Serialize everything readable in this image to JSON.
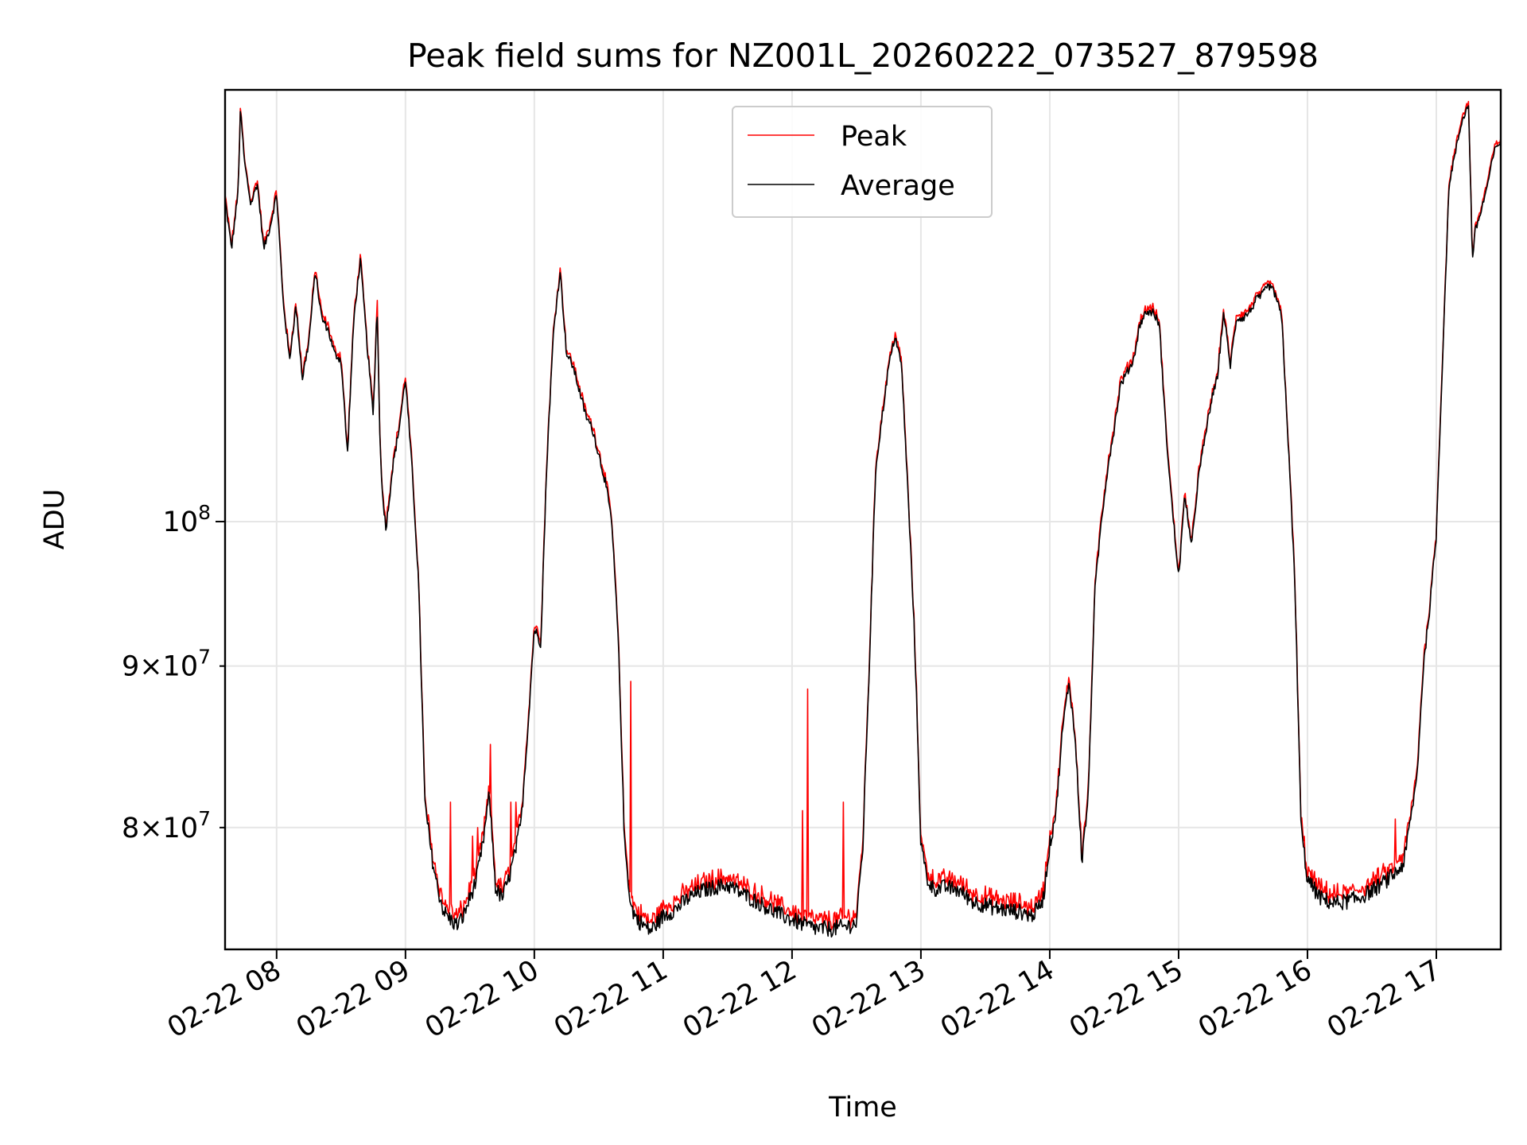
{
  "chart_data": {
    "type": "line",
    "title": "Peak field sums for NZ001L_20260222_073527_879598",
    "xlabel": "Time",
    "ylabel": "ADU",
    "yscale": "log",
    "grid": true,
    "legend_position": "upper-center",
    "xlim_hours": [
      7.6,
      17.5
    ],
    "ylim": [
      73200000,
      137000000
    ],
    "x_ticks": [
      {
        "value": 8,
        "label": "02-22 08"
      },
      {
        "value": 9,
        "label": "02-22 09"
      },
      {
        "value": 10,
        "label": "02-22 10"
      },
      {
        "value": 11,
        "label": "02-22 11"
      },
      {
        "value": 12,
        "label": "02-22 12"
      },
      {
        "value": 13,
        "label": "02-22 13"
      },
      {
        "value": 14,
        "label": "02-22 14"
      },
      {
        "value": 15,
        "label": "02-22 15"
      },
      {
        "value": 16,
        "label": "02-22 16"
      },
      {
        "value": 17,
        "label": "02-22 17"
      }
    ],
    "y_ticks": [
      {
        "value": 80000000,
        "mantissa": "8",
        "base": "10",
        "exp": "7",
        "major": false
      },
      {
        "value": 90000000,
        "mantissa": "9",
        "base": "10",
        "exp": "7",
        "major": false
      },
      {
        "value": 100000000,
        "mantissa": "",
        "base": "10",
        "exp": "8",
        "major": true
      }
    ],
    "series_names": [
      "Peak",
      "Average"
    ],
    "series_colors": [
      "#ff0000",
      "#000000"
    ],
    "average_knots": [
      [
        7.6,
        126.5
      ],
      [
        7.65,
        122.0
      ],
      [
        7.7,
        127.0
      ],
      [
        7.72,
        135.0
      ],
      [
        7.75,
        130.0
      ],
      [
        7.8,
        126.0
      ],
      [
        7.85,
        128.0
      ],
      [
        7.9,
        122.0
      ],
      [
        7.95,
        124.0
      ],
      [
        8.0,
        127.0
      ],
      [
        8.05,
        117.5
      ],
      [
        8.1,
        112.5
      ],
      [
        8.15,
        117.0
      ],
      [
        8.2,
        111.0
      ],
      [
        8.25,
        114.0
      ],
      [
        8.3,
        120.0
      ],
      [
        8.35,
        116.0
      ],
      [
        8.4,
        115.0
      ],
      [
        8.45,
        113.0
      ],
      [
        8.5,
        112.5
      ],
      [
        8.55,
        105.0
      ],
      [
        8.6,
        116.0
      ],
      [
        8.65,
        121.0
      ],
      [
        8.7,
        114.0
      ],
      [
        8.75,
        108.0
      ],
      [
        8.78,
        117.0
      ],
      [
        8.8,
        107.0
      ],
      [
        8.82,
        102.0
      ],
      [
        8.85,
        99.5
      ],
      [
        8.9,
        104.0
      ],
      [
        8.95,
        107.0
      ],
      [
        9.0,
        111.0
      ],
      [
        9.05,
        104.0
      ],
      [
        9.1,
        96.0
      ],
      [
        9.15,
        81.5
      ],
      [
        9.2,
        78.5
      ],
      [
        9.25,
        76.5
      ],
      [
        9.3,
        75.2
      ],
      [
        9.35,
        74.8
      ],
      [
        9.4,
        74.5
      ],
      [
        9.45,
        75.0
      ],
      [
        9.5,
        76.0
      ],
      [
        9.55,
        77.0
      ],
      [
        9.6,
        79.0
      ],
      [
        9.65,
        82.0
      ],
      [
        9.7,
        76.5
      ],
      [
        9.75,
        76.0
      ],
      [
        9.8,
        77.0
      ],
      [
        9.85,
        78.5
      ],
      [
        9.9,
        80.5
      ],
      [
        9.95,
        86.0
      ],
      [
        10.0,
        92.5
      ],
      [
        10.05,
        91.5
      ],
      [
        10.1,
        105.0
      ],
      [
        10.15,
        115.0
      ],
      [
        10.2,
        120.0
      ],
      [
        10.25,
        113.0
      ],
      [
        10.3,
        112.0
      ],
      [
        10.35,
        110.0
      ],
      [
        10.4,
        108.0
      ],
      [
        10.45,
        107.0
      ],
      [
        10.5,
        105.0
      ],
      [
        10.55,
        103.0
      ],
      [
        10.6,
        100.0
      ],
      [
        10.65,
        92.0
      ],
      [
        10.7,
        79.0
      ],
      [
        10.75,
        75.5
      ],
      [
        10.8,
        74.8
      ],
      [
        10.85,
        74.5
      ],
      [
        10.9,
        74.2
      ],
      [
        10.95,
        74.6
      ],
      [
        11.0,
        75.0
      ],
      [
        11.1,
        75.4
      ],
      [
        11.2,
        76.0
      ],
      [
        11.3,
        76.4
      ],
      [
        11.4,
        76.6
      ],
      [
        11.5,
        76.7
      ],
      [
        11.6,
        76.3
      ],
      [
        11.7,
        75.9
      ],
      [
        11.8,
        75.5
      ],
      [
        11.9,
        75.1
      ],
      [
        12.0,
        74.8
      ],
      [
        12.1,
        74.5
      ],
      [
        12.2,
        74.3
      ],
      [
        12.3,
        74.3
      ],
      [
        12.4,
        74.4
      ],
      [
        12.5,
        74.6
      ],
      [
        12.55,
        79.0
      ],
      [
        12.6,
        90.0
      ],
      [
        12.65,
        104.0
      ],
      [
        12.7,
        108.0
      ],
      [
        12.75,
        112.0
      ],
      [
        12.8,
        114.5
      ],
      [
        12.85,
        112.0
      ],
      [
        12.9,
        102.0
      ],
      [
        12.95,
        92.0
      ],
      [
        13.0,
        79.0
      ],
      [
        13.05,
        77.0
      ],
      [
        13.1,
        76.5
      ],
      [
        13.2,
        76.6
      ],
      [
        13.3,
        76.4
      ],
      [
        13.4,
        75.8
      ],
      [
        13.5,
        75.6
      ],
      [
        13.6,
        75.4
      ],
      [
        13.7,
        75.3
      ],
      [
        13.8,
        75.2
      ],
      [
        13.85,
        75.0
      ],
      [
        13.9,
        75.3
      ],
      [
        13.95,
        76.0
      ],
      [
        14.0,
        79.0
      ],
      [
        14.05,
        81.0
      ],
      [
        14.1,
        86.0
      ],
      [
        14.15,
        89.0
      ],
      [
        14.2,
        85.0
      ],
      [
        14.25,
        78.0
      ],
      [
        14.3,
        82.0
      ],
      [
        14.35,
        95.0
      ],
      [
        14.4,
        100.0
      ],
      [
        14.45,
        104.0
      ],
      [
        14.5,
        107.0
      ],
      [
        14.55,
        110.5
      ],
      [
        14.6,
        111.5
      ],
      [
        14.65,
        112.5
      ],
      [
        14.7,
        115.5
      ],
      [
        14.75,
        116.5
      ],
      [
        14.8,
        116.5
      ],
      [
        14.85,
        115.5
      ],
      [
        14.9,
        107.0
      ],
      [
        14.95,
        101.0
      ],
      [
        15.0,
        96.0
      ],
      [
        15.05,
        102.0
      ],
      [
        15.1,
        98.0
      ],
      [
        15.15,
        103.0
      ],
      [
        15.2,
        106.0
      ],
      [
        15.25,
        109.0
      ],
      [
        15.3,
        111.0
      ],
      [
        15.35,
        116.5
      ],
      [
        15.4,
        112.0
      ],
      [
        15.45,
        116.0
      ],
      [
        15.5,
        116.0
      ],
      [
        15.55,
        116.5
      ],
      [
        15.6,
        117.5
      ],
      [
        15.65,
        118.0
      ],
      [
        15.7,
        118.8
      ],
      [
        15.75,
        118.0
      ],
      [
        15.8,
        116.0
      ],
      [
        15.85,
        106.0
      ],
      [
        15.9,
        96.0
      ],
      [
        15.95,
        80.0
      ],
      [
        16.0,
        77.0
      ],
      [
        16.1,
        76.0
      ],
      [
        16.2,
        75.7
      ],
      [
        16.3,
        75.8
      ],
      [
        16.4,
        76.0
      ],
      [
        16.5,
        76.4
      ],
      [
        16.6,
        76.9
      ],
      [
        16.7,
        77.5
      ],
      [
        16.75,
        78.0
      ],
      [
        16.8,
        80.5
      ],
      [
        16.85,
        83.0
      ],
      [
        16.9,
        90.0
      ],
      [
        16.95,
        94.0
      ],
      [
        17.0,
        99.0
      ],
      [
        17.05,
        113.0
      ],
      [
        17.1,
        128.0
      ],
      [
        17.15,
        131.0
      ],
      [
        17.2,
        134.0
      ],
      [
        17.25,
        135.5
      ],
      [
        17.28,
        121.0
      ],
      [
        17.3,
        123.5
      ],
      [
        17.35,
        125.5
      ],
      [
        17.4,
        128.0
      ],
      [
        17.45,
        131.0
      ],
      [
        17.5,
        132.0
      ]
    ],
    "peak_spikes": [
      [
        8.78,
        117.5
      ],
      [
        9.35,
        81.5
      ],
      [
        9.52,
        79.5
      ],
      [
        9.56,
        80.0
      ],
      [
        9.66,
        85.0
      ],
      [
        9.82,
        81.5
      ],
      [
        9.86,
        81.5
      ],
      [
        10.75,
        89.0
      ],
      [
        12.08,
        81.0
      ],
      [
        12.12,
        88.5
      ],
      [
        12.4,
        81.5
      ],
      [
        16.68,
        80.5
      ]
    ]
  }
}
